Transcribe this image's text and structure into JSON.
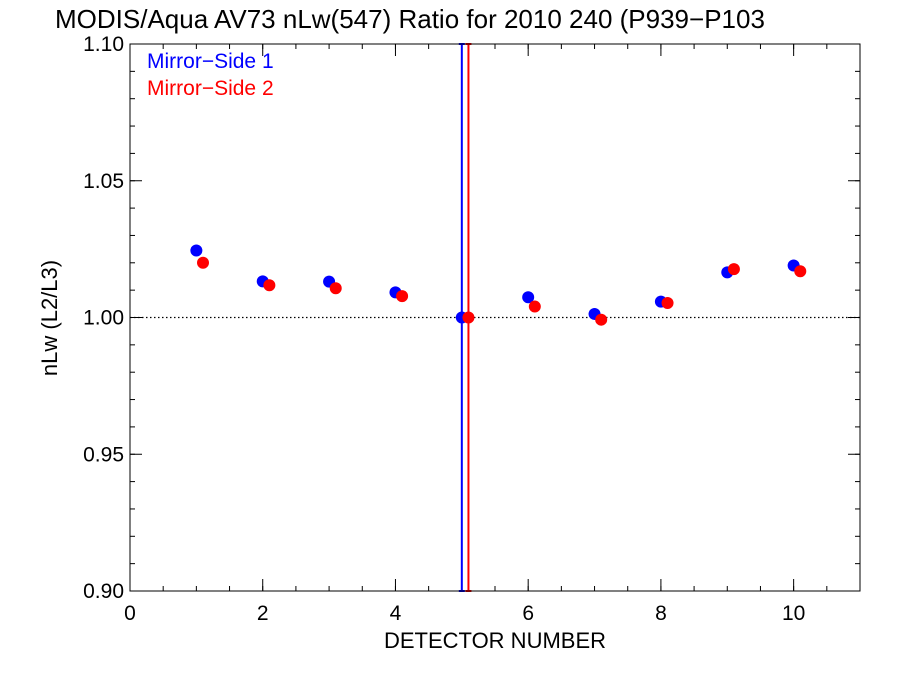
{
  "chart_data": {
    "type": "scatter",
    "title": "MODIS/Aqua AV73 nLw(547) Ratio for 2010 240 (P939−P103",
    "xlabel": "DETECTOR NUMBER",
    "ylabel": "nLw (L2/L3)",
    "xlim": [
      0,
      11
    ],
    "ylim": [
      0.9,
      1.1
    ],
    "xticks": [
      0,
      2,
      4,
      6,
      8,
      10
    ],
    "xtick_labels": [
      "0",
      "2",
      "4",
      "6",
      "8",
      "10"
    ],
    "yticks": [
      0.9,
      0.95,
      1.0,
      1.05,
      1.1
    ],
    "ytick_labels": [
      "0.90",
      "0.95",
      "1.00",
      "1.05",
      "1.10"
    ],
    "reference_line": {
      "y": 1.0,
      "style": "dotted",
      "color": "#000000"
    },
    "legend_placement": "top-left",
    "series": [
      {
        "name": "Mirror−Side 1",
        "color": "#0000ff",
        "x": [
          1,
          2,
          3,
          4,
          5,
          6,
          7,
          8,
          9,
          10
        ],
        "y": [
          1.0245,
          1.0132,
          1.0131,
          1.0092,
          1.0,
          1.0074,
          1.0013,
          1.0058,
          1.0165,
          1.019
        ],
        "error_bar": {
          "x": 5,
          "low": 0.9,
          "high": 1.1
        }
      },
      {
        "name": "Mirror−Side 2",
        "color": "#ff0000",
        "x": [
          1.1,
          2.1,
          3.1,
          4.1,
          5.1,
          6.1,
          7.1,
          8.1,
          9.1,
          10.1
        ],
        "y": [
          1.02,
          1.0118,
          1.0107,
          1.0078,
          1.0,
          1.004,
          0.9992,
          1.0053,
          1.0177,
          1.0169
        ],
        "error_bar": {
          "x": 5.1,
          "low": 0.9,
          "high": 1.1
        }
      }
    ]
  }
}
